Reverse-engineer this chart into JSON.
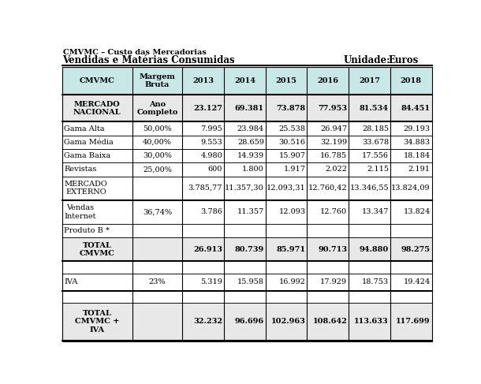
{
  "title_line1": "CMVMC – Custo das Mercadorias",
  "title_line2": "Vendidas e Matérias Consumidas",
  "unit_label": "Unidade:",
  "unit_value": "Euros",
  "headers": [
    "CMVMC",
    "Margem\nBruta",
    "2013",
    "2014",
    "2015",
    "2016",
    "2017",
    "2018"
  ],
  "rows": [
    {
      "label": "MERCADO\nNACIONAL",
      "margem": "Ano\nCompleto",
      "values": [
        "23.127",
        "69.381",
        "73.878",
        "77.953",
        "81.534",
        "84.451"
      ],
      "bold": true,
      "thick_bottom": true,
      "bg": "#e8e8e8"
    },
    {
      "label": "Gama Alta",
      "margem": "50,00%",
      "values": [
        "7.995",
        "23.984",
        "25.538",
        "26.947",
        "28.185",
        "29.193"
      ],
      "bold": false,
      "thick_bottom": false,
      "bg": null
    },
    {
      "label": "Gama Média",
      "margem": "40,00%",
      "values": [
        "9.553",
        "28.659",
        "30.516",
        "32.199",
        "33.678",
        "34.883"
      ],
      "bold": false,
      "thick_bottom": false,
      "bg": null
    },
    {
      "label": "Gama Baixa",
      "margem": "30,00%",
      "values": [
        "4.980",
        "14.939",
        "15.907",
        "16.785",
        "17.556",
        "18.184"
      ],
      "bold": false,
      "thick_bottom": false,
      "bg": null
    },
    {
      "label": "Revistas",
      "margem": "25,00%",
      "values": [
        "600",
        "1.800",
        "1.917",
        "2.022",
        "2.115",
        "2.191"
      ],
      "bold": false,
      "thick_bottom": false,
      "bg": null
    },
    {
      "label": "MERCADO\nEXTERNO",
      "margem": "",
      "values": [
        "3.785,77",
        "11.357,30",
        "12.093,31",
        "12.760,42",
        "13.346,55",
        "13.824,09"
      ],
      "bold": false,
      "thick_bottom": true,
      "bg": null
    },
    {
      "label": "Vendas\nInternet",
      "margem": "36,74%",
      "values": [
        "3.786",
        "11.357",
        "12.093",
        "12.760",
        "13.347",
        "13.824"
      ],
      "bold": false,
      "thick_bottom": false,
      "bg": null
    },
    {
      "label": "Produto B *",
      "margem": "",
      "values": [
        "",
        "",
        "",
        "",
        "",
        ""
      ],
      "bold": false,
      "thick_bottom": false,
      "bg": null
    },
    {
      "label": "TOTAL\nCMVMC",
      "margem": "",
      "values": [
        "26.913",
        "80.739",
        "85.971",
        "90.713",
        "94.880",
        "98.275"
      ],
      "bold": true,
      "thick_bottom": true,
      "bg": "#e8e8e8"
    },
    {
      "label": "",
      "margem": "",
      "values": [
        "",
        "",
        "",
        "",
        "",
        ""
      ],
      "bold": false,
      "thick_bottom": false,
      "bg": null,
      "spacer": true
    },
    {
      "label": "IVA",
      "margem": "23%",
      "values": [
        "5.319",
        "15.958",
        "16.992",
        "17.929",
        "18.753",
        "19.424"
      ],
      "bold": false,
      "thick_bottom": true,
      "bg": null
    },
    {
      "label": "",
      "margem": "",
      "values": [
        "",
        "",
        "",
        "",
        "",
        ""
      ],
      "bold": false,
      "thick_bottom": false,
      "bg": null,
      "spacer": true
    },
    {
      "label": "TOTAL\nCMVMC +\nIVA",
      "margem": "",
      "values": [
        "32.232",
        "96.696",
        "102.963",
        "108.642",
        "113.633",
        "117.699"
      ],
      "bold": true,
      "thick_bottom": false,
      "bg": "#e8e8e8"
    }
  ],
  "header_bg": "#c8e8e8",
  "table_border_color": "#000000",
  "bg_color": "#ffffff"
}
